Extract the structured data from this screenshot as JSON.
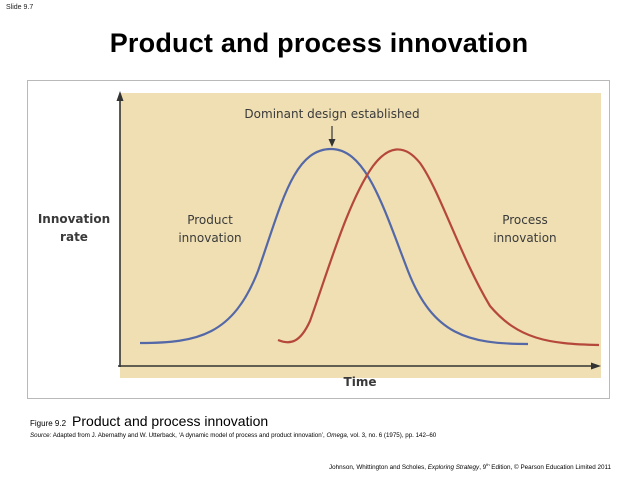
{
  "slide": {
    "number": "Slide 9.7",
    "title": "Product and process innovation"
  },
  "figure": {
    "y_axis_label_line1": "Innovation",
    "y_axis_label_line2": "rate",
    "x_axis_label": "Time",
    "annotation": "Dominant design established",
    "product_label_line1": "Product",
    "product_label_line2": "innovation",
    "process_label_line1": "Process",
    "process_label_line2": "innovation",
    "background_color": "#efdfb3",
    "product_color": "#5468a8",
    "process_color": "#b5483a"
  },
  "caption": {
    "figure_number": "Figure 9.2",
    "figure_title": "Product and process innovation",
    "source_label": "Source:",
    "source_text": " Adapted from J. Abernathy and W. Utterback, ‘A dynamic model of process and product innovation’, ",
    "journal": "Omega",
    "source_tail": ", vol. 3, no. 6 (1975), pp. 142–60"
  },
  "credit": {
    "authors": "Johnson, Whittington and Scholes, ",
    "book": "Exploring Strategy",
    "edition_pre": ", 9",
    "edition_sup": "th",
    "edition_post": " Edition, © Pearson Education Limited 2011"
  }
}
